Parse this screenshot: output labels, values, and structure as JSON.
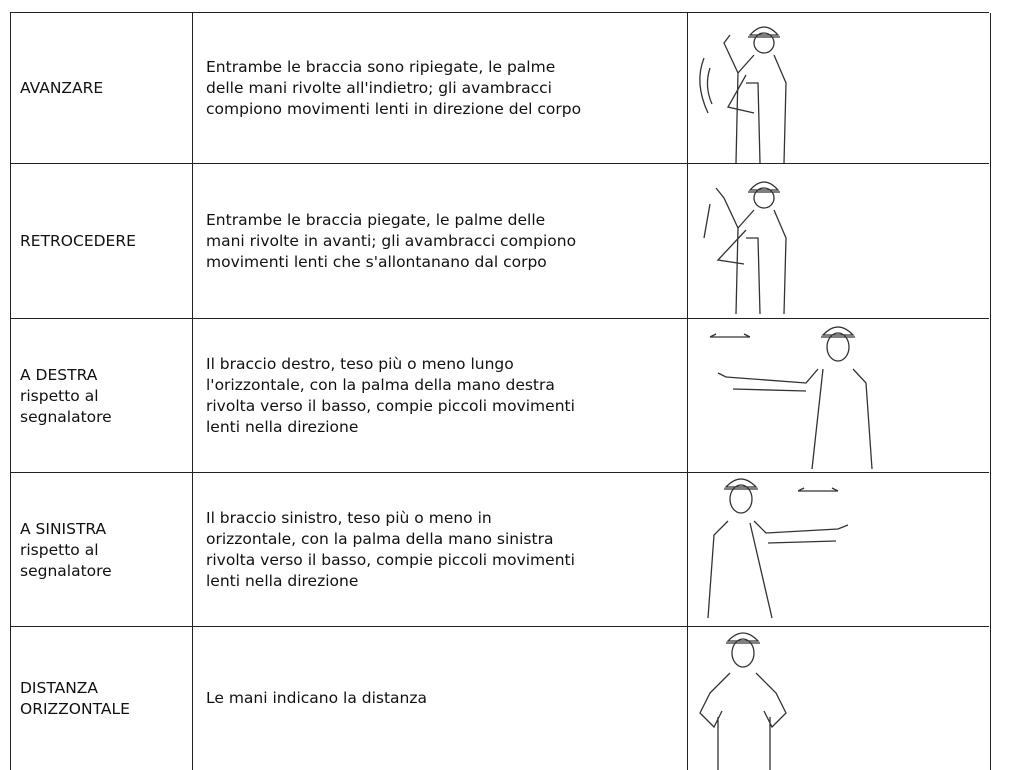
{
  "rows": [
    {
      "label": [
        "AVANZARE"
      ],
      "description": [
        "Entrambe le braccia sono ripiegate, le palme",
        "delle mani rivolte all'indietro; gli avambracci",
        "compiono movimenti lenti in direzione del corpo"
      ]
    },
    {
      "label": [
        "RETROCEDERE"
      ],
      "description": [
        "Entrambe le braccia piegate, le palme delle",
        "mani rivolte in avanti; gli avambracci compiono",
        "movimenti lenti che s'allontanano dal corpo"
      ]
    },
    {
      "label": [
        "A DESTRA",
        "rispetto al",
        "segnalatore"
      ],
      "description": [
        "Il braccio destro, teso più o meno lungo",
        "l'orizzontale, con la palma della mano destra",
        "rivolta verso il basso, compie piccoli movimenti",
        "lenti nella direzione"
      ]
    },
    {
      "label": [
        "A SINISTRA",
        "rispetto al",
        "segnalatore"
      ],
      "description": [
        "Il braccio sinistro, teso più o meno in",
        "orizzontale, con la palma della mano sinistra",
        "rivolta verso il basso, compie piccoli movimenti",
        "lenti nella direzione"
      ]
    },
    {
      "label": [
        "DISTANZA",
        "ORIZZONTALE"
      ],
      "description": [
        "Le mani indicano la distanza"
      ]
    }
  ]
}
